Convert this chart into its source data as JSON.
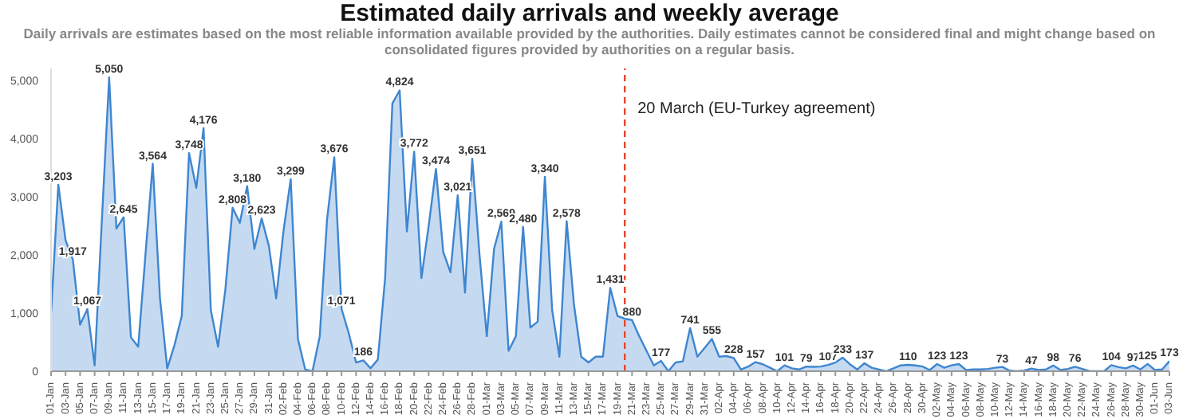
{
  "chart_data": {
    "type": "area",
    "title": "Estimated daily arrivals and weekly average",
    "subtitle": "Daily arrivals are estimates based on the most reliable information available provided by the authorities. Daily estimates cannot be considered final and might change based on consolidated figures provided by authorities on a regular basis.",
    "x": [
      "--01-01",
      "--01-02",
      "--01-03",
      "--01-04",
      "--01-05",
      "--01-06",
      "--01-07",
      "--01-08",
      "--01-09",
      "--01-10",
      "--01-11",
      "--01-12",
      "--01-13",
      "--01-14",
      "--01-15",
      "--01-16",
      "--01-17",
      "--01-18",
      "--01-19",
      "--01-20",
      "--01-21",
      "--01-22",
      "--01-23",
      "--01-24",
      "--01-25",
      "--01-26",
      "--01-27",
      "--01-28",
      "--01-29",
      "--01-30",
      "--01-31",
      "--02-01",
      "--02-02",
      "--02-03",
      "--02-04",
      "--02-05",
      "--02-06",
      "--02-07",
      "--02-08",
      "--02-09",
      "--02-10",
      "--02-11",
      "--02-12",
      "--02-13",
      "--02-14",
      "--02-15",
      "--02-16",
      "--02-17",
      "--02-18",
      "--02-19",
      "--02-20",
      "--02-21",
      "--02-22",
      "--02-23",
      "--02-24",
      "--02-25",
      "--02-26",
      "--02-27",
      "--02-28",
      "--02-29",
      "--03-01",
      "--03-02",
      "--03-03",
      "--03-04",
      "--03-05",
      "--03-06",
      "--03-07",
      "--03-08",
      "--03-09",
      "--03-10",
      "--03-11",
      "--03-12",
      "--03-13",
      "--03-14",
      "--03-15",
      "--03-16",
      "--03-17",
      "--03-18",
      "--03-19",
      "--03-20",
      "--03-21",
      "--03-22",
      "--03-23",
      "--03-24",
      "--03-25",
      "--03-26",
      "--03-27",
      "--03-28",
      "--03-29",
      "--03-30",
      "--03-31",
      "--04-01",
      "--04-02",
      "--04-03",
      "--04-04",
      "--04-05",
      "--04-06",
      "--04-07",
      "--04-08",
      "--04-09",
      "--04-10",
      "--04-11",
      "--04-12",
      "--04-13",
      "--04-14",
      "--04-15",
      "--04-16",
      "--04-17",
      "--04-18",
      "--04-19",
      "--04-20",
      "--04-21",
      "--04-22",
      "--04-23",
      "--04-24",
      "--04-25",
      "--04-26",
      "--04-27",
      "--04-28",
      "--04-29",
      "--04-30",
      "--05-01",
      "--05-02",
      "--05-03",
      "--05-04",
      "--05-05",
      "--05-06",
      "--05-07",
      "--05-08",
      "--05-09",
      "--05-10",
      "--05-11",
      "--05-12",
      "--05-13",
      "--05-14",
      "--05-15",
      "--05-16",
      "--05-17",
      "--05-18",
      "--05-19",
      "--05-20",
      "--05-21",
      "--05-22",
      "--05-23",
      "--05-24",
      "--05-25",
      "--05-26",
      "--05-27",
      "--05-28",
      "--05-29",
      "--05-30",
      "--05-31",
      "--06-01",
      "--06-02",
      "--06-03"
    ],
    "series": [
      {
        "color": "#3f86d0",
        "values": [
          1000,
          3203,
          2250,
          1917,
          800,
          1067,
          100,
          2600,
          5050,
          2450,
          2645,
          580,
          420,
          2000,
          3564,
          1250,
          50,
          450,
          950,
          3748,
          3150,
          4176,
          1050,
          420,
          1400,
          2808,
          2550,
          3180,
          2100,
          2623,
          2150,
          1250,
          2400,
          3299,
          550,
          30,
          0,
          600,
          2600,
          3676,
          1071,
          650,
          150,
          186,
          50,
          200,
          1600,
          4600,
          4824,
          2400,
          3772,
          1600,
          2500,
          3474,
          2050,
          1700,
          3021,
          1350,
          3651,
          2000,
          600,
          2100,
          2569,
          350,
          600,
          2480,
          750,
          850,
          3340,
          1050,
          250,
          2578,
          1150,
          250,
          150,
          250,
          250,
          1431,
          950,
          900,
          880,
          600,
          350,
          100,
          177,
          0,
          150,
          170,
          741,
          250,
          400,
          555,
          250,
          260,
          228,
          30,
          80,
          157,
          120,
          60,
          0,
          101,
          50,
          30,
          79,
          75,
          80,
          107,
          150,
          233,
          120,
          30,
          137,
          60,
          30,
          0,
          50,
          100,
          110,
          100,
          80,
          20,
          123,
          60,
          100,
          123,
          20,
          30,
          30,
          40,
          60,
          73,
          10,
          0,
          10,
          47,
          20,
          30,
          98,
          20,
          40,
          76,
          40,
          0,
          0,
          0,
          104,
          70,
          50,
          97,
          30,
          125,
          20,
          30,
          173
        ],
        "value_labels": [
          null,
          "3,203",
          null,
          "1,917",
          null,
          "1,067",
          null,
          null,
          "5,050",
          null,
          "2,645",
          null,
          null,
          null,
          "3,564",
          null,
          null,
          null,
          null,
          "3,748",
          null,
          "4,176",
          null,
          null,
          null,
          "2,808",
          null,
          "3,180",
          null,
          "2,623",
          null,
          null,
          null,
          "3,299",
          null,
          null,
          null,
          null,
          null,
          "3,676",
          "1,071",
          null,
          null,
          "186",
          null,
          null,
          null,
          null,
          "4,824",
          null,
          "3,772",
          null,
          null,
          "3,474",
          null,
          null,
          "3,021",
          null,
          "3,651",
          null,
          null,
          null,
          "2,569",
          null,
          null,
          "2,480",
          null,
          null,
          "3,340",
          null,
          null,
          "2,578",
          null,
          null,
          null,
          null,
          null,
          "1,431",
          null,
          null,
          "880",
          null,
          null,
          null,
          "177",
          null,
          null,
          null,
          "741",
          null,
          null,
          "555",
          null,
          null,
          "228",
          null,
          null,
          "157",
          null,
          null,
          null,
          "101",
          null,
          null,
          "79",
          null,
          null,
          "107",
          null,
          "233",
          null,
          null,
          "137",
          null,
          null,
          null,
          null,
          null,
          "110",
          null,
          null,
          null,
          "123",
          null,
          null,
          "123",
          null,
          null,
          null,
          null,
          null,
          "73",
          null,
          null,
          null,
          "47",
          null,
          null,
          "98",
          null,
          null,
          "76",
          null,
          null,
          null,
          null,
          "104",
          null,
          null,
          "97",
          null,
          "125",
          null,
          null,
          "173"
        ]
      }
    ],
    "xlim": [
      "--01-01",
      "--06-03"
    ],
    "xticks": [
      {
        "value": "--01-01",
        "label": "01-Jan"
      },
      {
        "value": "--01-03",
        "label": "03-Jan"
      },
      {
        "value": "--01-05",
        "label": "05-Jan"
      },
      {
        "value": "--01-07",
        "label": "07-Jan"
      },
      {
        "value": "--01-09",
        "label": "09-Jan"
      },
      {
        "value": "--01-11",
        "label": "11-Jan"
      },
      {
        "value": "--01-13",
        "label": "13-Jan"
      },
      {
        "value": "--01-15",
        "label": "15-Jan"
      },
      {
        "value": "--01-17",
        "label": "17-Jan"
      },
      {
        "value": "--01-19",
        "label": "19-Jan"
      },
      {
        "value": "--01-21",
        "label": "21-Jan"
      },
      {
        "value": "--01-23",
        "label": "23-Jan"
      },
      {
        "value": "--01-25",
        "label": "25-Jan"
      },
      {
        "value": "--01-27",
        "label": "27-Jan"
      },
      {
        "value": "--01-29",
        "label": "29-Jan"
      },
      {
        "value": "--01-31",
        "label": "31-Jan"
      },
      {
        "value": "--02-02",
        "label": "02-Feb"
      },
      {
        "value": "--02-04",
        "label": "04-Feb"
      },
      {
        "value": "--02-06",
        "label": "06-Feb"
      },
      {
        "value": "--02-08",
        "label": "08-Feb"
      },
      {
        "value": "--02-10",
        "label": "10-Feb"
      },
      {
        "value": "--02-12",
        "label": "12-Feb"
      },
      {
        "value": "--02-14",
        "label": "14-Feb"
      },
      {
        "value": "--02-16",
        "label": "16-Feb"
      },
      {
        "value": "--02-18",
        "label": "18-Feb"
      },
      {
        "value": "--02-20",
        "label": "20-Feb"
      },
      {
        "value": "--02-22",
        "label": "22-Feb"
      },
      {
        "value": "--02-24",
        "label": "24-Feb"
      },
      {
        "value": "--02-26",
        "label": "26-Feb"
      },
      {
        "value": "--02-28",
        "label": "28-Feb"
      },
      {
        "value": "--03-01",
        "label": "01-Mar"
      },
      {
        "value": "--03-03",
        "label": "03-Mar"
      },
      {
        "value": "--03-05",
        "label": "05-Mar"
      },
      {
        "value": "--03-07",
        "label": "07-Mar"
      },
      {
        "value": "--03-09",
        "label": "09-Mar"
      },
      {
        "value": "--03-11",
        "label": "11-Mar"
      },
      {
        "value": "--03-13",
        "label": "13-Mar"
      },
      {
        "value": "--03-15",
        "label": "15-Mar"
      },
      {
        "value": "--03-17",
        "label": "17-Mar"
      },
      {
        "value": "--03-19",
        "label": "19-Mar"
      },
      {
        "value": "--03-21",
        "label": "21-Mar"
      },
      {
        "value": "--03-23",
        "label": "23-Mar"
      },
      {
        "value": "--03-25",
        "label": "25-Mar"
      },
      {
        "value": "--03-27",
        "label": "27-Mar"
      },
      {
        "value": "--03-29",
        "label": "29-Mar"
      },
      {
        "value": "--03-31",
        "label": "31-Mar"
      },
      {
        "value": "--04-02",
        "label": "02-Apr"
      },
      {
        "value": "--04-04",
        "label": "04-Apr"
      },
      {
        "value": "--04-06",
        "label": "06-Apr"
      },
      {
        "value": "--04-08",
        "label": "08-Apr"
      },
      {
        "value": "--04-10",
        "label": "10-Apr"
      },
      {
        "value": "--04-12",
        "label": "12-Apr"
      },
      {
        "value": "--04-14",
        "label": "14-Apr"
      },
      {
        "value": "--04-16",
        "label": "16-Apr"
      },
      {
        "value": "--04-18",
        "label": "18-Apr"
      },
      {
        "value": "--04-20",
        "label": "20-Apr"
      },
      {
        "value": "--04-22",
        "label": "22-Apr"
      },
      {
        "value": "--04-24",
        "label": "24-Apr"
      },
      {
        "value": "--04-26",
        "label": "26-Apr"
      },
      {
        "value": "--04-28",
        "label": "28-Apr"
      },
      {
        "value": "--04-30",
        "label": "30-Apr"
      },
      {
        "value": "--05-02",
        "label": "02-May"
      },
      {
        "value": "--05-04",
        "label": "04-May"
      },
      {
        "value": "--05-06",
        "label": "06-May"
      },
      {
        "value": "--05-08",
        "label": "08-May"
      },
      {
        "value": "--05-10",
        "label": "10-May"
      },
      {
        "value": "--05-12",
        "label": "12-May"
      },
      {
        "value": "--05-14",
        "label": "14-May"
      },
      {
        "value": "--05-16",
        "label": "16-May"
      },
      {
        "value": "--05-18",
        "label": "18-May"
      },
      {
        "value": "--05-20",
        "label": "20-May"
      },
      {
        "value": "--05-22",
        "label": "22-May"
      },
      {
        "value": "--05-24",
        "label": "24-May"
      },
      {
        "value": "--05-26",
        "label": "26-May"
      },
      {
        "value": "--05-28",
        "label": "28-May"
      },
      {
        "value": "--05-30",
        "label": "30-May"
      },
      {
        "value": "--06-01",
        "label": "01-Jun"
      },
      {
        "value": "--06-03",
        "label": "03-Jun"
      }
    ],
    "ylim": [
      0,
      5200
    ],
    "yticks": [
      0,
      {
        "value": 1000,
        "label": "1,000"
      },
      {
        "value": 2000,
        "label": "2,000"
      },
      {
        "value": 3000,
        "label": "3,000"
      },
      {
        "value": 4000,
        "label": "4,000"
      },
      {
        "value": 5000,
        "label": "5,000"
      }
    ],
    "ref_lines": [
      {
        "axis": "x",
        "value": "--03-20",
        "label": "20 March (EU-Turkey agreement)",
        "color": "#e8452c",
        "line_style": "dashed"
      }
    ],
    "grid": false,
    "legend": false
  }
}
